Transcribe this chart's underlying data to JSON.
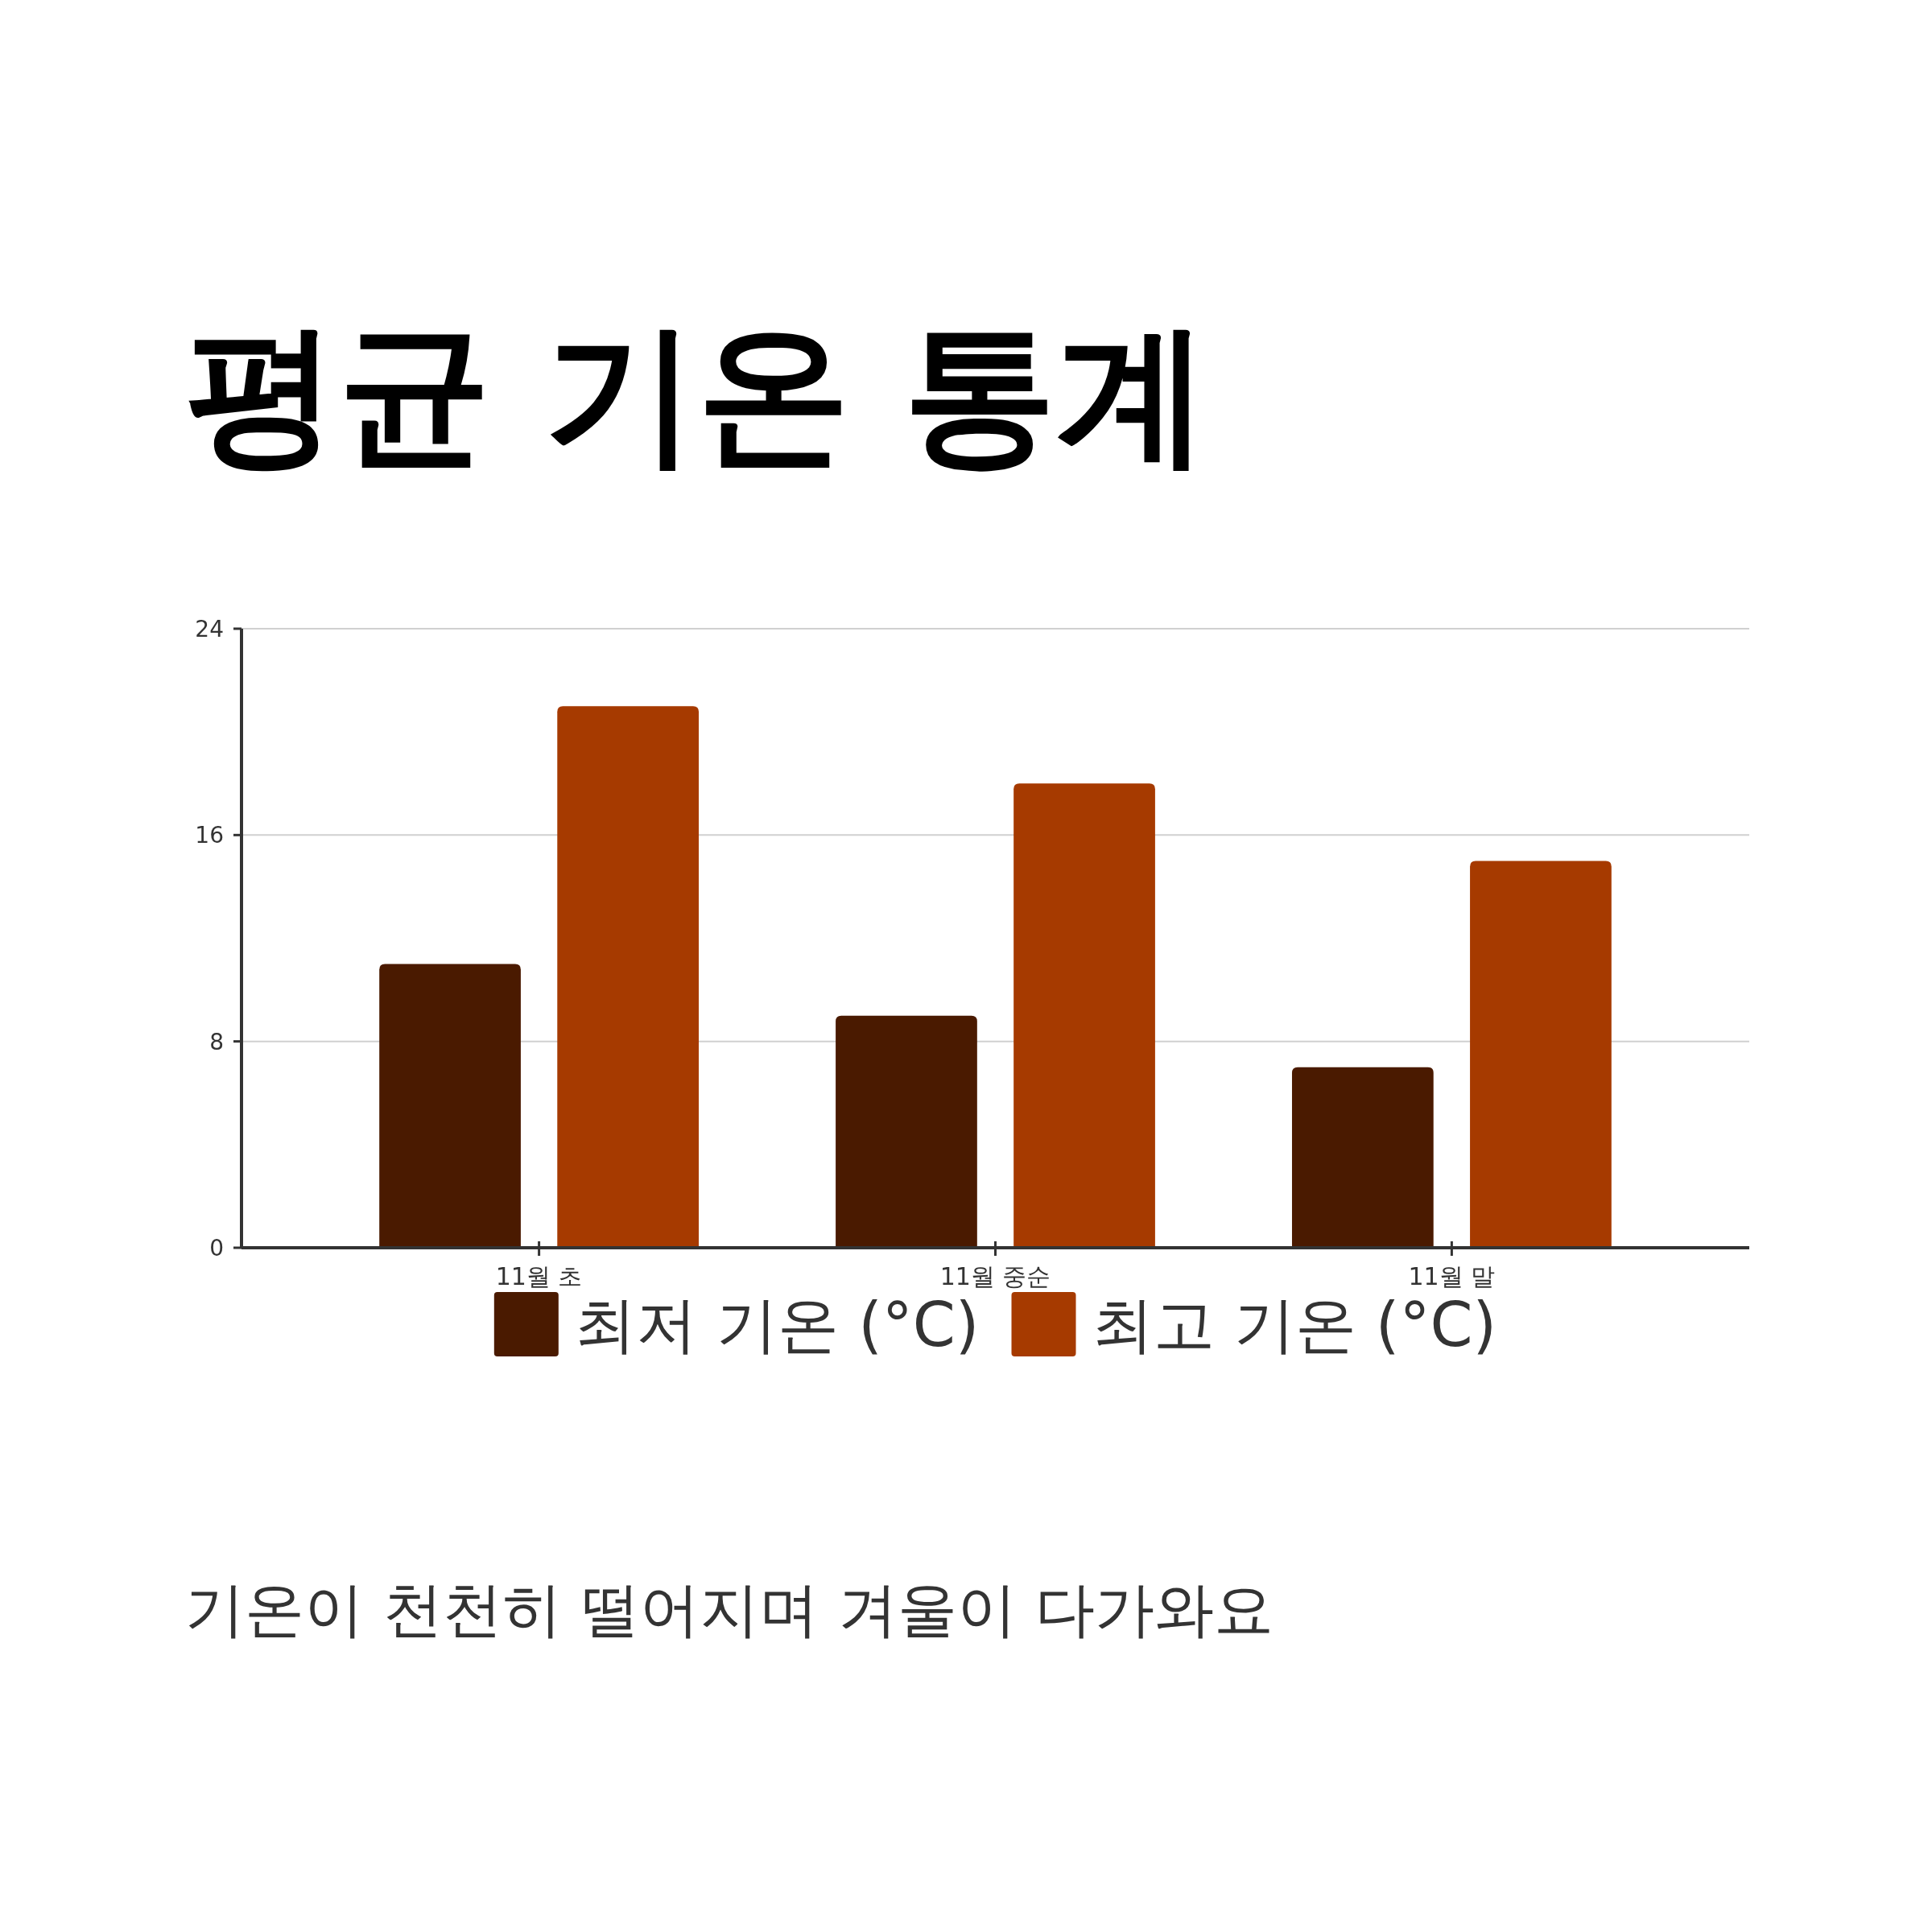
{
  "chart_data": {
    "type": "bar",
    "title": "평균 기온 통계",
    "annotations": [
      "기온이 천천히 떨어지며 겨울이 다가와요"
    ],
    "categories": [
      "11월 초",
      "11월 중순",
      "11월 말"
    ],
    "series": [
      {
        "name": "최저 기온 (°C)",
        "color": "#4a1a00",
        "values": [
          11,
          9,
          7
        ]
      },
      {
        "name": "최고 기온 (°C)",
        "color": "#a63a00",
        "values": [
          21,
          18,
          15
        ]
      }
    ],
    "ylim": [
      0,
      24
    ],
    "yticks": [
      0,
      8,
      16,
      24
    ],
    "grid": "y",
    "legend": "bottom"
  }
}
